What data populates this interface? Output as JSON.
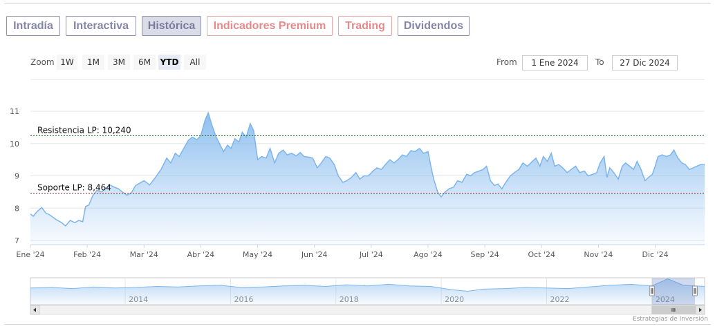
{
  "tabs": [
    {
      "label": "Intradía",
      "state": "normal"
    },
    {
      "label": "Interactiva",
      "state": "normal"
    },
    {
      "label": "Histórica",
      "state": "active"
    },
    {
      "label": "Indicadores Premium",
      "state": "premium"
    },
    {
      "label": "Trading",
      "state": "premium"
    },
    {
      "label": "Dividendos",
      "state": "normal"
    }
  ],
  "zoom": {
    "label": "Zoom",
    "buttons": [
      "1W",
      "1M",
      "3M",
      "6M",
      "YTD",
      "All"
    ],
    "selected": "YTD"
  },
  "range": {
    "from_label": "From",
    "from_value": "1 Ene 2024",
    "to_label": "To",
    "to_value": "27 Dic 2024"
  },
  "credit": "Estrategias de Inversión",
  "colors": {
    "line": "#7cb5ec",
    "resistance": "#1e6b1e",
    "support": "#8b1a1a",
    "tab_border": "#8f8fb0",
    "premium": "#e58a8a"
  },
  "chart_data": {
    "type": "area",
    "ylim": [
      7,
      11
    ],
    "y_ticks": [
      7,
      8,
      9,
      10,
      11
    ],
    "x_tick_labels": [
      "Ene '24",
      "Feb '24",
      "Mar '24",
      "Abr '24",
      "May '24",
      "Jun '24",
      "Jul '24",
      "Ago '24",
      "Sep '24",
      "Oct '24",
      "Nov '24",
      "Dic '24"
    ],
    "x_tick_months": [
      0,
      1,
      2,
      3,
      4,
      5,
      6,
      7,
      8,
      9,
      10,
      11
    ],
    "x_range_months": [
      0,
      11.87
    ],
    "series": [
      {
        "points": [
          [
            0.0,
            7.82
          ],
          [
            0.05,
            7.75
          ],
          [
            0.12,
            7.9
          ],
          [
            0.2,
            8.02
          ],
          [
            0.27,
            7.85
          ],
          [
            0.35,
            7.78
          ],
          [
            0.45,
            7.65
          ],
          [
            0.55,
            7.55
          ],
          [
            0.62,
            7.45
          ],
          [
            0.7,
            7.62
          ],
          [
            0.78,
            7.55
          ],
          [
            0.85,
            7.62
          ],
          [
            0.92,
            7.58
          ],
          [
            0.97,
            8.05
          ],
          [
            1.03,
            8.1
          ],
          [
            1.1,
            8.4
          ],
          [
            1.17,
            8.55
          ],
          [
            1.25,
            8.5
          ],
          [
            1.32,
            8.6
          ],
          [
            1.4,
            8.72
          ],
          [
            1.48,
            8.65
          ],
          [
            1.55,
            8.6
          ],
          [
            1.62,
            8.5
          ],
          [
            1.7,
            8.4
          ],
          [
            1.78,
            8.48
          ],
          [
            1.85,
            8.7
          ],
          [
            1.93,
            8.78
          ],
          [
            2.0,
            8.85
          ],
          [
            2.1,
            8.72
          ],
          [
            2.2,
            8.95
          ],
          [
            2.3,
            9.2
          ],
          [
            2.4,
            9.55
          ],
          [
            2.47,
            9.4
          ],
          [
            2.55,
            9.7
          ],
          [
            2.62,
            9.6
          ],
          [
            2.7,
            9.85
          ],
          [
            2.78,
            10.1
          ],
          [
            2.85,
            10.2
          ],
          [
            2.93,
            10.12
          ],
          [
            3.0,
            10.25
          ],
          [
            3.07,
            10.7
          ],
          [
            3.13,
            10.95
          ],
          [
            3.2,
            10.55
          ],
          [
            3.27,
            10.2
          ],
          [
            3.33,
            10.0
          ],
          [
            3.4,
            9.75
          ],
          [
            3.47,
            9.95
          ],
          [
            3.53,
            9.85
          ],
          [
            3.6,
            10.15
          ],
          [
            3.67,
            10.05
          ],
          [
            3.73,
            10.35
          ],
          [
            3.8,
            10.2
          ],
          [
            3.87,
            10.62
          ],
          [
            3.93,
            10.4
          ],
          [
            4.0,
            9.5
          ],
          [
            4.07,
            9.6
          ],
          [
            4.15,
            9.55
          ],
          [
            4.22,
            9.85
          ],
          [
            4.3,
            9.4
          ],
          [
            4.37,
            9.7
          ],
          [
            4.45,
            9.8
          ],
          [
            4.52,
            9.65
          ],
          [
            4.6,
            9.7
          ],
          [
            4.68,
            9.62
          ],
          [
            4.75,
            9.72
          ],
          [
            4.82,
            9.6
          ],
          [
            4.9,
            9.58
          ],
          [
            4.97,
            9.55
          ],
          [
            5.05,
            9.25
          ],
          [
            5.12,
            9.4
          ],
          [
            5.2,
            9.6
          ],
          [
            5.27,
            9.55
          ],
          [
            5.35,
            9.35
          ],
          [
            5.42,
            9.0
          ],
          [
            5.5,
            8.8
          ],
          [
            5.57,
            8.85
          ],
          [
            5.65,
            8.95
          ],
          [
            5.73,
            9.1
          ],
          [
            5.8,
            8.9
          ],
          [
            5.87,
            9.0
          ],
          [
            5.95,
            9.0
          ],
          [
            6.03,
            9.15
          ],
          [
            6.1,
            9.25
          ],
          [
            6.18,
            9.2
          ],
          [
            6.25,
            9.35
          ],
          [
            6.33,
            9.5
          ],
          [
            6.4,
            9.4
          ],
          [
            6.47,
            9.5
          ],
          [
            6.55,
            9.65
          ],
          [
            6.62,
            9.6
          ],
          [
            6.7,
            9.78
          ],
          [
            6.77,
            9.75
          ],
          [
            6.85,
            9.85
          ],
          [
            6.92,
            9.7
          ],
          [
            7.0,
            9.75
          ],
          [
            7.05,
            9.3
          ],
          [
            7.1,
            8.9
          ],
          [
            7.17,
            8.5
          ],
          [
            7.23,
            8.35
          ],
          [
            7.3,
            8.5
          ],
          [
            7.37,
            8.6
          ],
          [
            7.45,
            8.65
          ],
          [
            7.52,
            8.85
          ],
          [
            7.6,
            8.8
          ],
          [
            7.68,
            9.05
          ],
          [
            7.75,
            9.0
          ],
          [
            7.82,
            9.1
          ],
          [
            7.9,
            9.15
          ],
          [
            7.97,
            9.2
          ],
          [
            8.03,
            9.3
          ],
          [
            8.1,
            8.85
          ],
          [
            8.17,
            8.7
          ],
          [
            8.23,
            8.75
          ],
          [
            8.3,
            8.6
          ],
          [
            8.37,
            8.8
          ],
          [
            8.45,
            9.0
          ],
          [
            8.52,
            9.1
          ],
          [
            8.6,
            9.2
          ],
          [
            8.67,
            9.4
          ],
          [
            8.75,
            9.3
          ],
          [
            8.82,
            9.42
          ],
          [
            8.9,
            9.55
          ],
          [
            8.97,
            9.3
          ],
          [
            9.03,
            9.6
          ],
          [
            9.1,
            9.45
          ],
          [
            9.17,
            9.7
          ],
          [
            9.23,
            9.3
          ],
          [
            9.3,
            9.35
          ],
          [
            9.37,
            9.25
          ],
          [
            9.45,
            9.1
          ],
          [
            9.52,
            9.2
          ],
          [
            9.6,
            9.3
          ],
          [
            9.67,
            9.1
          ],
          [
            9.75,
            9.15
          ],
          [
            9.82,
            9.0
          ],
          [
            9.9,
            9.05
          ],
          [
            9.97,
            9.1
          ],
          [
            10.03,
            9.4
          ],
          [
            10.1,
            9.6
          ],
          [
            10.15,
            8.95
          ],
          [
            10.2,
            9.25
          ],
          [
            10.27,
            9.1
          ],
          [
            10.35,
            8.9
          ],
          [
            10.42,
            9.3
          ],
          [
            10.48,
            9.4
          ],
          [
            10.55,
            9.3
          ],
          [
            10.62,
            9.2
          ],
          [
            10.68,
            9.45
          ],
          [
            10.75,
            9.2
          ],
          [
            10.82,
            8.85
          ],
          [
            10.88,
            8.95
          ],
          [
            10.95,
            9.05
          ],
          [
            11.0,
            9.3
          ],
          [
            11.05,
            9.6
          ],
          [
            11.12,
            9.65
          ],
          [
            11.2,
            9.6
          ],
          [
            11.27,
            9.65
          ],
          [
            11.33,
            9.8
          ],
          [
            11.4,
            9.55
          ],
          [
            11.47,
            9.4
          ],
          [
            11.53,
            9.35
          ],
          [
            11.6,
            9.2
          ],
          [
            11.67,
            9.25
          ],
          [
            11.73,
            9.3
          ],
          [
            11.8,
            9.35
          ],
          [
            11.87,
            9.35
          ]
        ]
      }
    ],
    "annotations": [
      {
        "label": "Resistencia LP: 10,240",
        "value": 10.24,
        "style": "dashed",
        "color": "#1e6b1e"
      },
      {
        "label": "Soporte LP: 8,464",
        "value": 8.464,
        "style": "dashed",
        "color": "#8b1a1a"
      }
    ],
    "navigator": {
      "x_tick_labels": [
        "2014",
        "2016",
        "2018",
        "2020",
        "2022",
        "2024"
      ],
      "x_ticks_years": [
        2014,
        2016,
        2018,
        2020,
        2022,
        2024
      ],
      "x_range_years": [
        2012.2,
        2025.0
      ],
      "selection_years": [
        2024.0,
        2025.0
      ],
      "ylim": [
        6,
        11
      ],
      "series": [
        [
          2012.2,
          9.1
        ],
        [
          2012.6,
          9.2
        ],
        [
          2013.0,
          9.0
        ],
        [
          2013.4,
          9.3
        ],
        [
          2013.8,
          9.1
        ],
        [
          2014.2,
          9.2
        ],
        [
          2014.6,
          9.4
        ],
        [
          2015.0,
          9.3
        ],
        [
          2015.4,
          9.5
        ],
        [
          2015.8,
          9.6
        ],
        [
          2016.2,
          9.2
        ],
        [
          2016.6,
          9.3
        ],
        [
          2017.0,
          9.5
        ],
        [
          2017.4,
          9.6
        ],
        [
          2017.8,
          9.4
        ],
        [
          2018.2,
          9.7
        ],
        [
          2018.6,
          9.5
        ],
        [
          2019.0,
          9.8
        ],
        [
          2019.4,
          9.5
        ],
        [
          2019.8,
          9.4
        ],
        [
          2020.2,
          8.8
        ],
        [
          2020.5,
          8.5
        ],
        [
          2020.8,
          8.9
        ],
        [
          2021.2,
          9.0
        ],
        [
          2021.6,
          9.2
        ],
        [
          2022.0,
          9.1
        ],
        [
          2022.4,
          9.0
        ],
        [
          2022.8,
          9.3
        ],
        [
          2023.2,
          9.6
        ],
        [
          2023.6,
          9.8
        ],
        [
          2024.0,
          9.5
        ],
        [
          2024.3,
          10.8
        ],
        [
          2024.6,
          9.6
        ],
        [
          2025.0,
          9.4
        ]
      ]
    }
  }
}
